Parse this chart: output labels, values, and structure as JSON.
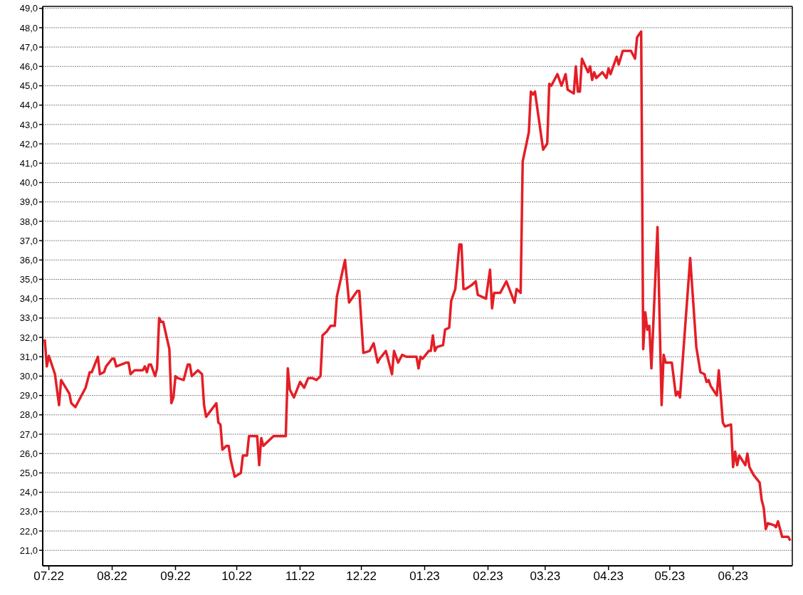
{
  "chart_data": {
    "type": "line",
    "x": [
      "2022-06-29",
      "2022-06-30",
      "2022-07-01",
      "2022-07-04",
      "2022-07-06",
      "2022-07-07",
      "2022-07-11",
      "2022-07-12",
      "2022-07-14",
      "2022-07-19",
      "2022-07-21",
      "2022-07-22",
      "2022-07-25",
      "2022-07-26",
      "2022-07-28",
      "2022-07-29",
      "2022-08-01",
      "2022-08-02",
      "2022-08-03",
      "2022-08-08",
      "2022-08-09",
      "2022-08-10",
      "2022-08-12",
      "2022-08-16",
      "2022-08-17",
      "2022-08-18",
      "2022-08-19",
      "2022-08-20",
      "2022-08-22",
      "2022-08-23",
      "2022-08-24",
      "2022-08-25",
      "2022-08-26",
      "2022-08-29",
      "2022-08-30",
      "2022-08-31",
      "2022-09-01",
      "2022-09-02",
      "2022-09-05",
      "2022-09-07",
      "2022-09-08",
      "2022-09-09",
      "2022-09-12",
      "2022-09-14",
      "2022-09-15",
      "2022-09-16",
      "2022-09-21",
      "2022-09-22",
      "2022-09-23",
      "2022-09-24",
      "2022-09-26",
      "2022-09-27",
      "2022-09-28",
      "2022-09-30",
      "2022-10-03",
      "2022-10-04",
      "2022-10-06",
      "2022-10-07",
      "2022-10-11",
      "2022-10-12",
      "2022-10-13",
      "2022-10-14",
      "2022-10-19",
      "2022-10-25",
      "2022-10-26",
      "2022-10-27",
      "2022-10-29",
      "2022-11-01",
      "2022-11-03",
      "2022-11-05",
      "2022-11-07",
      "2022-11-09",
      "2022-11-11",
      "2022-11-12",
      "2022-11-14",
      "2022-11-16",
      "2022-11-18",
      "2022-11-19",
      "2022-11-23",
      "2022-11-25",
      "2022-11-29",
      "2022-11-30",
      "2022-12-01",
      "2022-12-02",
      "2022-12-05",
      "2022-12-07",
      "2022-12-09",
      "2022-12-10",
      "2022-12-13",
      "2022-12-16",
      "2022-12-17",
      "2022-12-19",
      "2022-12-21",
      "2022-12-23",
      "2022-12-28",
      "2022-12-29",
      "2022-12-30",
      "2022-12-31",
      "2023-01-03",
      "2023-01-04",
      "2023-01-05",
      "2023-01-06",
      "2023-01-07",
      "2023-01-10",
      "2023-01-11",
      "2023-01-13",
      "2023-01-14",
      "2023-01-16",
      "2023-01-18",
      "2023-01-19",
      "2023-01-20",
      "2023-01-21",
      "2023-01-24",
      "2023-01-26",
      "2023-01-27",
      "2023-01-31",
      "2023-02-02",
      "2023-02-03",
      "2023-02-04",
      "2023-02-07",
      "2023-02-10",
      "2023-02-14",
      "2023-02-15",
      "2023-02-17",
      "2023-02-18",
      "2023-02-21",
      "2023-02-22",
      "2023-02-23",
      "2023-02-24",
      "2023-02-28",
      "2023-03-02",
      "2023-03-03",
      "2023-03-04",
      "2023-03-07",
      "2023-03-09",
      "2023-03-11",
      "2023-03-12",
      "2023-03-15",
      "2023-03-16",
      "2023-03-17",
      "2023-03-18",
      "2023-03-19",
      "2023-03-22",
      "2023-03-23",
      "2023-03-24",
      "2023-03-25",
      "2023-03-26",
      "2023-03-29",
      "2023-03-31",
      "2023-04-01",
      "2023-04-02",
      "2023-04-05",
      "2023-04-06",
      "2023-04-08",
      "2023-04-12",
      "2023-04-14",
      "2023-04-15",
      "2023-04-17",
      "2023-04-18",
      "2023-04-19",
      "2023-04-20",
      "2023-04-21",
      "2023-04-22",
      "2023-04-25",
      "2023-04-27",
      "2023-04-28",
      "2023-04-29",
      "2023-05-02",
      "2023-05-04",
      "2023-05-05",
      "2023-05-06",
      "2023-05-11",
      "2023-05-14",
      "2023-05-16",
      "2023-05-18",
      "2023-05-19",
      "2023-05-20",
      "2023-05-21",
      "2023-05-24",
      "2023-05-25",
      "2023-05-27",
      "2023-05-28",
      "2023-05-31",
      "2023-06-01",
      "2023-06-02",
      "2023-06-03",
      "2023-06-04",
      "2023-06-07",
      "2023-06-08",
      "2023-06-09",
      "2023-06-11",
      "2023-06-14",
      "2023-06-15",
      "2023-06-16",
      "2023-06-17",
      "2023-06-18",
      "2023-06-21",
      "2023-06-22",
      "2023-06-23",
      "2023-06-25",
      "2023-06-28",
      "2023-06-29"
    ],
    "series": [
      {
        "color": "#e41e26",
        "values": [
          31.9,
          30.5,
          31.05,
          30.1,
          28.5,
          29.8,
          29.1,
          28.6,
          28.4,
          29.4,
          30.2,
          30.2,
          31.0,
          30.1,
          30.2,
          30.5,
          30.9,
          30.9,
          30.5,
          30.7,
          30.7,
          30.1,
          30.3,
          30.3,
          30.5,
          30.2,
          30.6,
          30.6,
          30.0,
          30.4,
          33.0,
          32.8,
          32.8,
          31.4,
          28.6,
          28.9,
          30.0,
          29.9,
          29.8,
          30.6,
          30.6,
          30.0,
          30.3,
          30.1,
          28.5,
          27.9,
          28.6,
          27.6,
          27.5,
          26.2,
          26.4,
          26.4,
          25.7,
          24.8,
          25.0,
          25.9,
          25.9,
          26.9,
          26.9,
          25.4,
          26.8,
          26.4,
          26.9,
          26.9,
          30.4,
          29.3,
          28.9,
          29.7,
          29.4,
          29.9,
          29.9,
          29.8,
          30.0,
          32.1,
          32.3,
          32.6,
          32.6,
          34.1,
          36.0,
          33.8,
          34.4,
          34.4,
          32.8,
          31.2,
          31.3,
          31.7,
          30.7,
          30.9,
          31.3,
          30.1,
          31.3,
          30.7,
          31.1,
          31.0,
          31.0,
          30.4,
          31.0,
          30.9,
          31.3,
          31.3,
          32.1,
          31.3,
          31.5,
          31.6,
          32.4,
          32.5,
          33.9,
          34.5,
          36.8,
          36.8,
          34.5,
          34.5,
          34.7,
          34.9,
          34.2,
          34.0,
          35.5,
          33.5,
          34.3,
          34.3,
          34.9,
          33.8,
          34.5,
          34.3,
          41.1,
          42.6,
          44.7,
          44.55,
          44.7,
          41.7,
          42.0,
          45.1,
          45.0,
          45.6,
          45.0,
          45.6,
          44.8,
          44.6,
          46.0,
          44.7,
          44.7,
          46.4,
          45.7,
          46.0,
          45.3,
          45.7,
          45.4,
          45.7,
          45.4,
          45.9,
          45.6,
          46.5,
          46.1,
          46.8,
          46.8,
          46.4,
          47.5,
          47.8,
          31.4,
          33.3,
          32.4,
          32.6,
          30.4,
          37.7,
          28.5,
          31.1,
          30.7,
          30.7,
          29.0,
          29.2,
          28.9,
          36.1,
          31.5,
          30.2,
          30.1,
          29.7,
          29.8,
          29.5,
          29.0,
          30.3,
          27.6,
          27.4,
          27.5,
          25.3,
          26.1,
          25.4,
          25.9,
          25.4,
          26.0,
          25.3,
          24.9,
          24.5,
          23.6,
          23.2,
          22.1,
          22.4,
          22.3,
          22.2,
          22.5,
          21.7,
          21.7,
          21.5
        ]
      }
    ],
    "xlim": [
      "2022-06-28",
      "2023-06-30"
    ],
    "xticks": [
      {
        "value": "2022-07-01",
        "label": "07.22"
      },
      {
        "value": "2022-08-01",
        "label": "08.22"
      },
      {
        "value": "2022-09-01",
        "label": "09.22"
      },
      {
        "value": "2022-10-01",
        "label": "10.22"
      },
      {
        "value": "2022-11-01",
        "label": "11.22"
      },
      {
        "value": "2022-12-01",
        "label": "12.22"
      },
      {
        "value": "2023-01-01",
        "label": "01.23"
      },
      {
        "value": "2023-02-01",
        "label": "02.23"
      },
      {
        "value": "2023-03-01",
        "label": "03.23"
      },
      {
        "value": "2023-04-01",
        "label": "04.23"
      },
      {
        "value": "2023-05-01",
        "label": "05.23"
      },
      {
        "value": "2023-06-01",
        "label": "06.23"
      }
    ],
    "ylim": [
      20.2,
      49.1
    ],
    "yticks": [
      {
        "value": 21,
        "label": "21,0"
      },
      {
        "value": 22,
        "label": "22,0"
      },
      {
        "value": 23,
        "label": "23,0"
      },
      {
        "value": 24,
        "label": "24,0"
      },
      {
        "value": 25,
        "label": "25,0"
      },
      {
        "value": 26,
        "label": "26,0"
      },
      {
        "value": 27,
        "label": "27,0"
      },
      {
        "value": 28,
        "label": "28,0"
      },
      {
        "value": 29,
        "label": "29,0"
      },
      {
        "value": 30,
        "label": "30,0"
      },
      {
        "value": 31,
        "label": "31,0"
      },
      {
        "value": 32,
        "label": "32,0"
      },
      {
        "value": 33,
        "label": "33,0"
      },
      {
        "value": 34,
        "label": "34,0"
      },
      {
        "value": 35,
        "label": "35,0"
      },
      {
        "value": 36,
        "label": "36,0"
      },
      {
        "value": 37,
        "label": "37,0"
      },
      {
        "value": 38,
        "label": "38,0"
      },
      {
        "value": 39,
        "label": "39,0"
      },
      {
        "value": 40,
        "label": "40,0"
      },
      {
        "value": 41,
        "label": "41,0"
      },
      {
        "value": 42,
        "label": "42,0"
      },
      {
        "value": 43,
        "label": "43,0"
      },
      {
        "value": 44,
        "label": "44,0"
      },
      {
        "value": 45,
        "label": "45,0"
      },
      {
        "value": 46,
        "label": "46,0"
      },
      {
        "value": 47,
        "label": "47,0"
      },
      {
        "value": 48,
        "label": "48,0"
      },
      {
        "value": 49,
        "label": "49,0"
      }
    ],
    "grid": "y"
  }
}
